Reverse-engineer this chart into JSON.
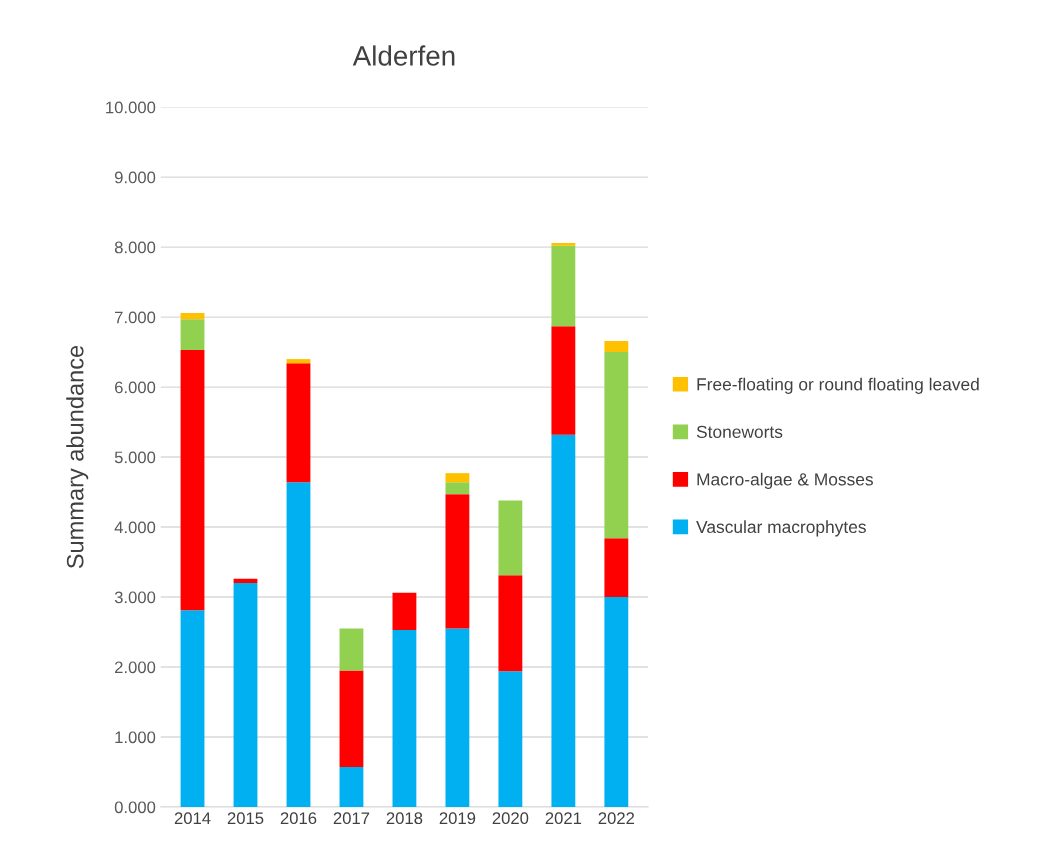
{
  "chart_data": {
    "type": "bar",
    "title": "Alderfen",
    "ylabel": "Summary abundance",
    "stacked": true,
    "categories": [
      "2014",
      "2015",
      "2016",
      "2017",
      "2018",
      "2019",
      "2020",
      "2021",
      "2022"
    ],
    "series": [
      {
        "name": "Vascular macrophytes",
        "color": "#00b0f0",
        "values": [
          2.81,
          3.2,
          4.64,
          0.57,
          2.53,
          2.55,
          1.94,
          5.32,
          3.0
        ]
      },
      {
        "name": "Macro-algae & Mosses",
        "color": "#ff0000",
        "values": [
          3.72,
          0.06,
          1.7,
          1.38,
          0.53,
          1.92,
          1.37,
          1.55,
          0.84
        ]
      },
      {
        "name": "Stoneworts",
        "color": "#92d050",
        "values": [
          0.44,
          null,
          null,
          0.6,
          null,
          0.17,
          1.07,
          1.15,
          2.66
        ]
      },
      {
        "name": "Free-floating or round floating leaved",
        "color": "#ffc000",
        "values": [
          0.09,
          null,
          0.06,
          null,
          null,
          0.13,
          null,
          0.04,
          0.16
        ]
      }
    ],
    "ylim": [
      0,
      10
    ],
    "yticks": [
      {
        "value": 0,
        "label": "0.000"
      },
      {
        "value": 1,
        "label": "1.000"
      },
      {
        "value": 2,
        "label": "2.000"
      },
      {
        "value": 3,
        "label": "3.000"
      },
      {
        "value": 4,
        "label": "4.000"
      },
      {
        "value": 5,
        "label": "5.000"
      },
      {
        "value": 6,
        "label": "6.000"
      },
      {
        "value": 7,
        "label": "7.000"
      },
      {
        "value": 8,
        "label": "8.000"
      },
      {
        "value": 9,
        "label": "9.000"
      },
      {
        "value": 10,
        "label": "10.000"
      }
    ],
    "grid": "y",
    "legend": "right"
  }
}
